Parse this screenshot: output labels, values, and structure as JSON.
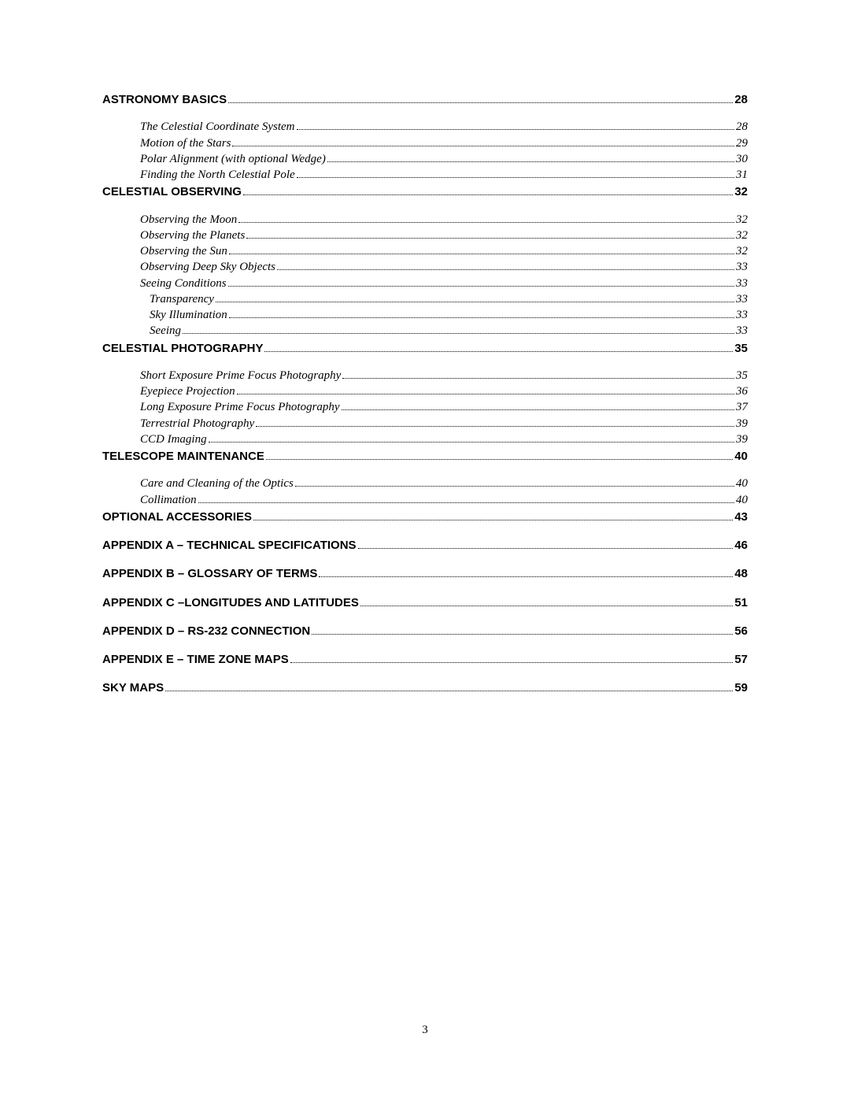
{
  "page_number": "3",
  "toc": [
    {
      "level": 1,
      "label": "ASTRONOMY BASICS",
      "page": "28",
      "gap_after": true
    },
    {
      "level": 2,
      "label": "The Celestial Coordinate System",
      "page": "28"
    },
    {
      "level": 2,
      "label": "Motion of the Stars",
      "page": "29"
    },
    {
      "level": 2,
      "label": "Polar Alignment (with optional Wedge)",
      "page": "30"
    },
    {
      "level": 2,
      "label": "Finding the North Celestial Pole",
      "page": "31"
    },
    {
      "level": 1,
      "label": "CELESTIAL OBSERVING",
      "page": "32",
      "gap_after": true
    },
    {
      "level": 2,
      "label": "Observing the Moon",
      "page": "32"
    },
    {
      "level": 2,
      "label": "Observing the Planets",
      "page": "32"
    },
    {
      "level": 2,
      "label": "Observing the Sun",
      "page": "32"
    },
    {
      "level": 2,
      "label": "Observing Deep Sky Objects",
      "page": "33"
    },
    {
      "level": 2,
      "label": "Seeing Conditions",
      "page": "33"
    },
    {
      "level": 3,
      "label": "Transparency",
      "page": "33"
    },
    {
      "level": 3,
      "label": "Sky Illumination",
      "page": "33"
    },
    {
      "level": 3,
      "label": "Seeing",
      "page": "33"
    },
    {
      "level": 1,
      "label": "CELESTIAL PHOTOGRAPHY",
      "page": "35",
      "gap_after": true
    },
    {
      "level": 2,
      "label": "Short Exposure Prime Focus Photography",
      "page": "35"
    },
    {
      "level": 2,
      "label": "Eyepiece Projection",
      "page": "36"
    },
    {
      "level": 2,
      "label": "Long Exposure Prime Focus Photography",
      "page": "37"
    },
    {
      "level": 2,
      "label": "Terrestrial Photography",
      "page": "39"
    },
    {
      "level": 2,
      "label": "CCD Imaging",
      "page": "39"
    },
    {
      "level": 1,
      "label": "TELESCOPE MAINTENANCE",
      "page": "40",
      "gap_after": true
    },
    {
      "level": 2,
      "label": "Care and Cleaning of the Optics",
      "page": "40"
    },
    {
      "level": 2,
      "label": "Collimation",
      "page": "40"
    },
    {
      "level": 1,
      "label": "OPTIONAL ACCESSORIES",
      "page": "43",
      "gap_after": true
    },
    {
      "level": 1,
      "label": "APPENDIX A – TECHNICAL SPECIFICATIONS",
      "page": "46",
      "gap_after": true
    },
    {
      "level": 1,
      "label": "APPENDIX B – GLOSSARY OF TERMS",
      "page": "48",
      "gap_after": true
    },
    {
      "level": 1,
      "label": "APPENDIX C –LONGITUDES AND LATITUDES",
      "page": "51",
      "gap_after": true
    },
    {
      "level": 1,
      "label": "APPENDIX D – RS-232 CONNECTION",
      "page": "56",
      "gap_after": true
    },
    {
      "level": 1,
      "label": "APPENDIX E – TIME ZONE MAPS",
      "page": "57",
      "gap_after": true
    },
    {
      "level": 1,
      "label": "SKY MAPS",
      "page": "59"
    }
  ]
}
